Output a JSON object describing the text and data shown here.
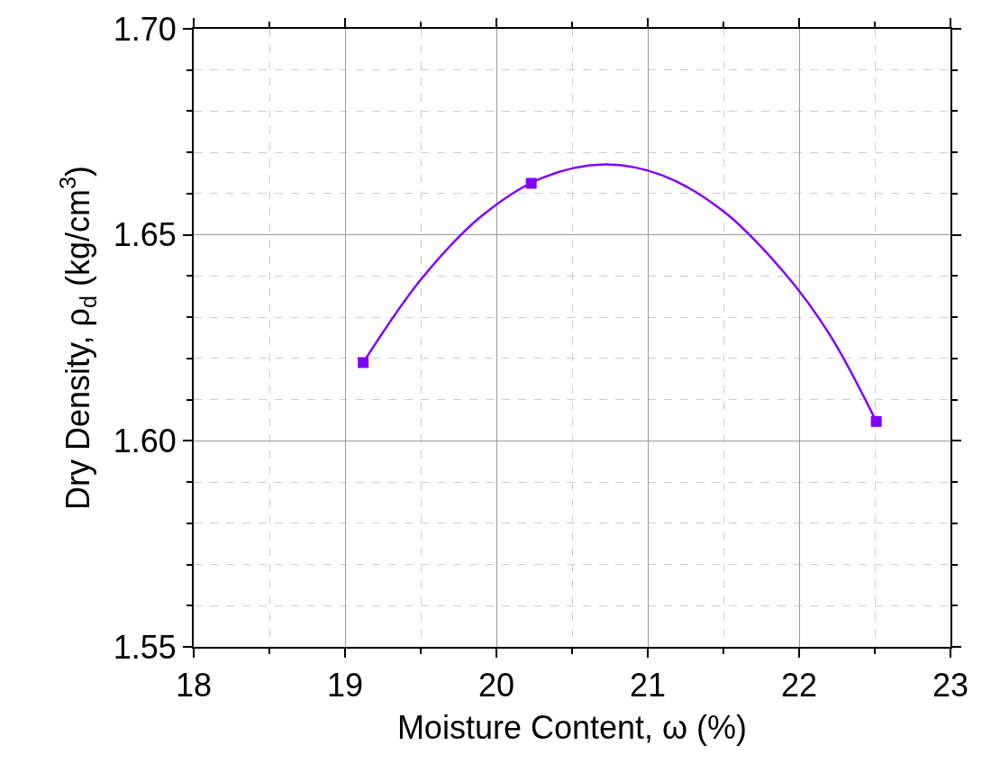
{
  "chart_data": {
    "type": "scatter",
    "xlabel": "Moisture Content, ω (%)",
    "ylabel": "Dry Density, ρ$_{d}$ (kg/cm$^{3}$)",
    "x": [
      19.12,
      20.23,
      22.51
    ],
    "series": [
      {
        "color": "#8000ff",
        "values": [
          1.619,
          1.6625,
          1.6047
        ],
        "marker": "square"
      },
      {
        "type": "line",
        "color": "#8000ff",
        "x": [
          19.12,
          19.5,
          19.9,
          20.3,
          20.72,
          21.1,
          21.5,
          21.9,
          22.2,
          22.51
        ],
        "values": [
          1.619,
          1.6391,
          1.6545,
          1.6638,
          1.6671,
          1.6644,
          1.6557,
          1.6409,
          1.6259,
          1.6047
        ],
        "marker": "none",
        "line_style": "solid"
      }
    ],
    "xlim": [
      18,
      23
    ],
    "xticks": [
      18,
      19,
      20,
      21,
      22,
      23
    ],
    "ylim": [
      1.55,
      1.7
    ],
    "yticks": [
      {
        "value": 1.55,
        "label": "1.55"
      },
      {
        "value": 1.6,
        "label": "1.60"
      },
      {
        "value": 1.65,
        "label": "1.65"
      },
      {
        "value": 1.7,
        "label": "1.70"
      }
    ],
    "grid": true
  }
}
